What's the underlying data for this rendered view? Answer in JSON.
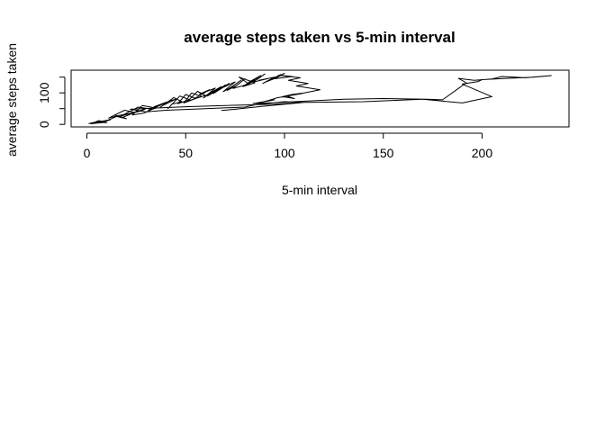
{
  "chart_data": {
    "type": "line",
    "title": "average steps taken vs 5-min interval",
    "xlabel": "5-min interval",
    "ylabel": "average steps taken",
    "xlim": [
      -8,
      244
    ],
    "ylim": [
      -8,
      172
    ],
    "xticks": [
      0,
      50,
      100,
      150,
      200
    ],
    "yticks": [
      0,
      50,
      100,
      150
    ],
    "ytick_labels": [
      "0",
      "",
      "100",
      ""
    ],
    "grid": false,
    "legend": "none",
    "line_color": "#000000",
    "series": [
      {
        "x": [
          2,
          8,
          1,
          5,
          10,
          6,
          3,
          12,
          9,
          15,
          20,
          14,
          18,
          25,
          22,
          16,
          11,
          19,
          24,
          30,
          27,
          21,
          17,
          26,
          33,
          29,
          23,
          28,
          35,
          31,
          38,
          34,
          40,
          36,
          32,
          42,
          45,
          39,
          37,
          44,
          48,
          43,
          41,
          47,
          52,
          46,
          50,
          55,
          49,
          53,
          58,
          51,
          56,
          60,
          54,
          62,
          57,
          65,
          59,
          63,
          68,
          61,
          66,
          70,
          64,
          72,
          67,
          75,
          69,
          73,
          78,
          71,
          76,
          80,
          74,
          82,
          77,
          85,
          79,
          83,
          88,
          81,
          86,
          90,
          84,
          92,
          87,
          95,
          89,
          93,
          98,
          91,
          96,
          100,
          94,
          104,
          97,
          108,
          102,
          112,
          106,
          118,
          110,
          103,
          99,
          105,
          101,
          109,
          96,
          92,
          88,
          95,
          84,
          112,
          130,
          150,
          172,
          180,
          192,
          188,
          196,
          205,
          210,
          222,
          235,
          226,
          212,
          200,
          198,
          190,
          205,
          190,
          170,
          140,
          112,
          100,
          93,
          85,
          80,
          60,
          40,
          30,
          22,
          35,
          50,
          70,
          95,
          110,
          90,
          75,
          68
        ],
        "y": [
          2,
          6,
          3,
          8,
          5,
          12,
          4,
          15,
          9,
          25,
          18,
          30,
          22,
          40,
          35,
          28,
          20,
          45,
          38,
          50,
          42,
          33,
          26,
          55,
          48,
          36,
          30,
          60,
          52,
          44,
          65,
          56,
          70,
          58,
          46,
          75,
          80,
          62,
          54,
          85,
          72,
          64,
          50,
          90,
          78,
          66,
          95,
          82,
          68,
          100,
          88,
          74,
          105,
          92,
          80,
          110,
          96,
          115,
          84,
          102,
          120,
          90,
          108,
          125,
          98,
          130,
          112,
          135,
          104,
          118,
          140,
          108,
          124,
          145,
          114,
          128,
          150,
          132,
          120,
          138,
          155,
          126,
          142,
          160,
          134,
          146,
          140,
          150,
          130,
          142,
          158,
          136,
          148,
          162,
          144,
          152,
          156,
          148,
          140,
          130,
          122,
          110,
          100,
          94,
          88,
          82,
          90,
          98,
          84,
          76,
          70,
          78,
          66,
          74,
          80,
          82,
          80,
          78,
          132,
          146,
          140,
          144,
          152,
          148,
          155,
          150,
          146,
          142,
          136,
          128,
          88,
          68,
          80,
          72,
          70,
          72,
          68,
          62,
          55,
          50,
          45,
          40,
          48,
          52,
          56,
          60,
          64,
          70,
          58,
          48,
          44
        ]
      }
    ]
  }
}
